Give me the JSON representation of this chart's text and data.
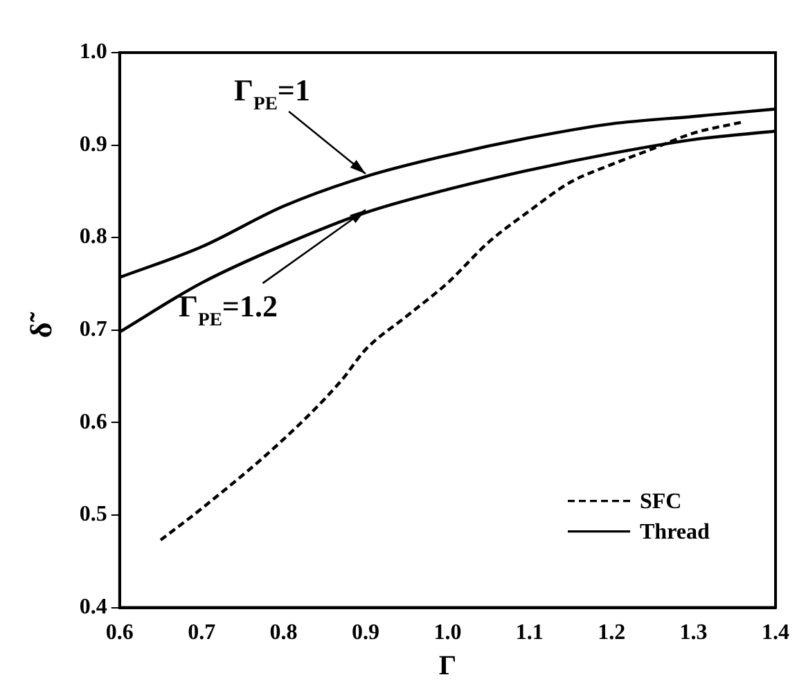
{
  "chart_data": {
    "type": "line",
    "xlabel": "Γ",
    "ylabel": "δ̃",
    "xlim": [
      0.6,
      1.4
    ],
    "ylim": [
      0.4,
      1.0
    ],
    "xticks": [
      {
        "value": 0.6,
        "label": "0.6"
      },
      {
        "value": 0.7,
        "label": "0.7"
      },
      {
        "value": 0.8,
        "label": "0.8"
      },
      {
        "value": 0.9,
        "label": "0.9"
      },
      {
        "value": 1.0,
        "label": "1.0"
      },
      {
        "value": 1.1,
        "label": "1.1"
      },
      {
        "value": 1.2,
        "label": "1.2"
      },
      {
        "value": 1.3,
        "label": "1.3"
      },
      {
        "value": 1.4,
        "label": "1.4"
      }
    ],
    "yticks": [
      {
        "value": 0.4,
        "label": "0.4"
      },
      {
        "value": 0.5,
        "label": "0.5"
      },
      {
        "value": 0.6,
        "label": "0.6"
      },
      {
        "value": 0.7,
        "label": "0.7"
      },
      {
        "value": 0.8,
        "label": "0.8"
      },
      {
        "value": 0.9,
        "label": "0.9"
      },
      {
        "value": 1.0,
        "label": "1.0"
      }
    ],
    "grid": false,
    "legend": "bottom right",
    "marker": "none",
    "series": [
      {
        "name": "SFC",
        "color": "#000000",
        "line_style": "dashed",
        "x": [
          0.65,
          0.7,
          0.8,
          0.87,
          0.9,
          0.95,
          1.0,
          1.05,
          1.1,
          1.15,
          1.2,
          1.25,
          1.3,
          1.36
        ],
        "values": [
          0.473,
          0.507,
          0.582,
          0.645,
          0.679,
          0.715,
          0.751,
          0.795,
          0.829,
          0.86,
          0.879,
          0.896,
          0.913,
          0.925
        ]
      },
      {
        "name": "Thread",
        "color": "#000000",
        "line_style": "solid",
        "x": [
          0.6,
          0.7,
          0.8,
          0.9,
          1.0,
          1.1,
          1.2,
          1.3,
          1.4
        ],
        "values": [
          0.757,
          0.79,
          0.834,
          0.866,
          0.889,
          0.908,
          0.923,
          0.931,
          0.939
        ]
      },
      {
        "color": "#000000",
        "line_style": "solid",
        "x": [
          0.6,
          0.7,
          0.8,
          0.9,
          1.0,
          1.1,
          1.2,
          1.3,
          1.4
        ],
        "values": [
          0.698,
          0.751,
          0.792,
          0.827,
          0.852,
          0.873,
          0.891,
          0.906,
          0.915
        ]
      }
    ],
    "annotations": [
      {
        "text": "Γ$_{PE}$=1",
        "x": 0.9,
        "y": 0.866
      },
      {
        "text": "Γ$_{PE}$=1.2",
        "x": 0.9,
        "y": 0.827
      }
    ]
  }
}
